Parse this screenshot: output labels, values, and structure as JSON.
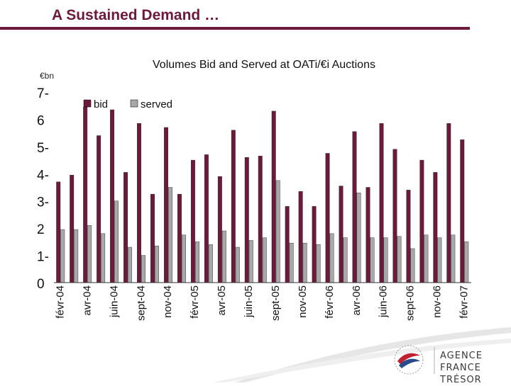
{
  "header": {
    "title": "A Sustained Demand …"
  },
  "logo": {
    "line1": "AGENCE",
    "line2": "FRANCE TRÉSOR"
  },
  "colors": {
    "bid": "#6b1a3a",
    "served": "#a8a8a8",
    "title": "#6b1a3a"
  },
  "chart_data": {
    "type": "bar",
    "title": "Volumes Bid and Served at OATi/€i Auctions",
    "ylabel": "€bn",
    "ylim": [
      0,
      7
    ],
    "yticks": [
      "0",
      "1-",
      "2",
      "3-",
      "4-",
      "5-",
      "6",
      "7-"
    ],
    "legend": {
      "placement": "top-left",
      "entries": [
        "bid",
        "served"
      ]
    },
    "grid": false,
    "categories": [
      "févr-04",
      "",
      "avr-04",
      "",
      "juin-04",
      "",
      "sept-04",
      "",
      "nov-04",
      "",
      "févr-05",
      "",
      "avr-05",
      "",
      "juin-05",
      "",
      "sept-05",
      "",
      "nov-05",
      "",
      "févr-06",
      "",
      "avr-06",
      "",
      "juin-06",
      "",
      "sept-06",
      "",
      "nov-06",
      "",
      "févr-07"
    ],
    "series": [
      {
        "name": "bid",
        "values": [
          3.7,
          3.95,
          6.45,
          5.4,
          6.35,
          4.05,
          5.85,
          3.25,
          5.7,
          3.25,
          4.5,
          4.7,
          3.9,
          5.6,
          4.6,
          4.65,
          6.3,
          2.8,
          3.35,
          2.8,
          4.75,
          3.55,
          5.55,
          3.5,
          5.85,
          4.9,
          3.4,
          4.5,
          4.05,
          5.85,
          5.25
        ]
      },
      {
        "name": "served",
        "values": [
          1.95,
          1.95,
          2.1,
          1.8,
          3.0,
          1.3,
          1.0,
          1.35,
          3.5,
          1.75,
          1.5,
          1.4,
          1.9,
          1.3,
          1.55,
          1.65,
          3.75,
          1.45,
          1.45,
          1.4,
          1.8,
          1.65,
          3.3,
          1.65,
          1.65,
          1.7,
          1.25,
          1.75,
          1.65,
          1.75,
          1.5
        ]
      }
    ]
  }
}
